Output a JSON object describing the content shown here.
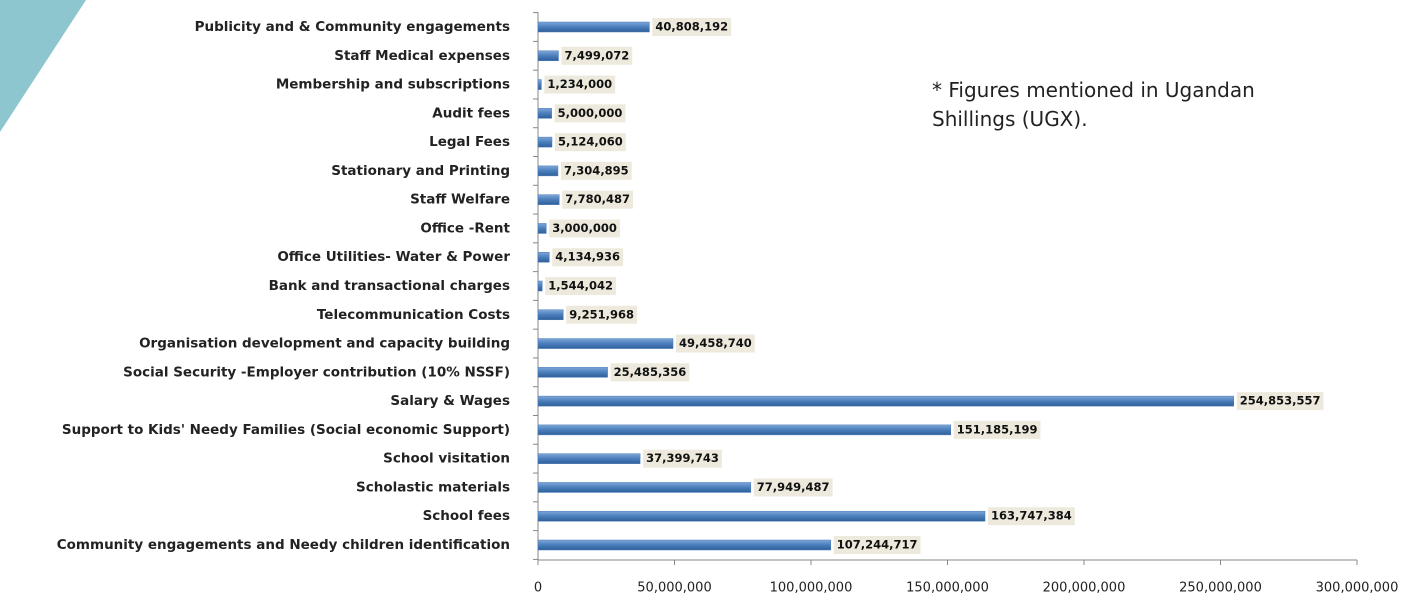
{
  "chart_data": {
    "type": "bar",
    "orientation": "horizontal",
    "annotation": "* Figures mentioned in Ugandan Shillings (UGX).",
    "categories": [
      "Publicity and & Community engagements",
      "Staff Medical expenses",
      "Membership and subscriptions",
      "Audit fees",
      "Legal Fees",
      "Stationary and Printing",
      "Staff Welfare",
      "Office -Rent",
      "Office Utilities- Water & Power",
      "Bank and transactional charges",
      "Telecommunication Costs",
      "Organisation development and capacity building",
      "Social Security -Employer contribution (10% NSSF)",
      "Salary & Wages",
      "Support to Kids' Needy Families (Social economic Support)",
      "School visitation",
      "Scholastic materials",
      "School fees",
      "Community engagements and Needy children identification"
    ],
    "values": [
      40808192,
      7499072,
      1234000,
      5000000,
      5124060,
      7304895,
      7780487,
      3000000,
      4134936,
      1544042,
      9251968,
      49458740,
      25485356,
      254853557,
      151185199,
      37399743,
      77949487,
      163747384,
      107244717
    ],
    "value_labels": [
      "40,808,192",
      "7,499,072",
      "1,234,000",
      "5,000,000",
      "5,124,060",
      "7,304,895",
      "7,780,487",
      "3,000,000",
      "4,134,936",
      "1,544,042",
      "9,251,968",
      "49,458,740",
      "25,485,356",
      "254,853,557",
      "151,185,199",
      "37,399,743",
      "77,949,487",
      "163,747,384",
      "107,244,717"
    ],
    "color": "#4a7ebb",
    "xlim": [
      0,
      300000000
    ],
    "xticks": [
      0,
      {
        "value": 50000000,
        "label": "50,000,000"
      },
      {
        "value": 100000000,
        "label": "100,000,000"
      },
      {
        "value": 150000000,
        "label": "150,000,000"
      },
      {
        "value": 200000000,
        "label": "200,000,000"
      },
      {
        "value": 250000000,
        "label": "250,000,000"
      },
      {
        "value": 300000000,
        "label": "300,000,000"
      }
    ],
    "grid": false
  }
}
